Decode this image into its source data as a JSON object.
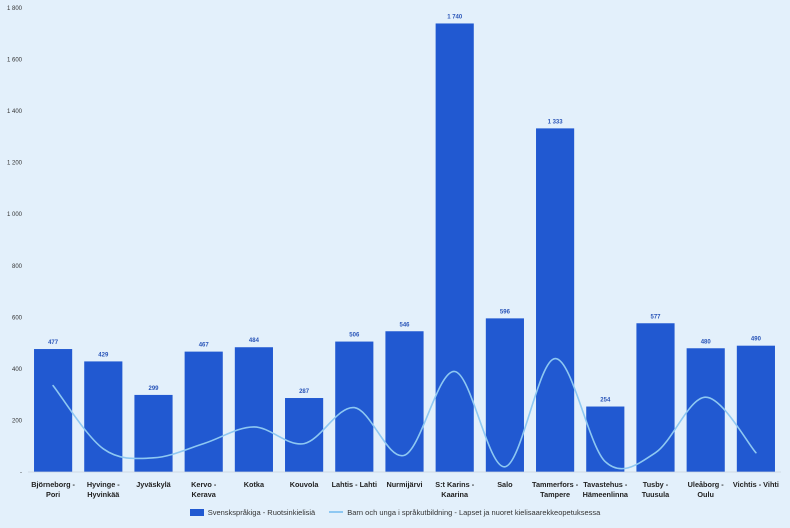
{
  "chart_data": {
    "type": "bar",
    "categories": [
      [
        "Björneborg -",
        "Pori"
      ],
      [
        "Hyvinge -",
        "Hyvinkää"
      ],
      [
        "Jyväskylä"
      ],
      [
        "Kervo -",
        "Kerava"
      ],
      [
        "Kotka"
      ],
      [
        "Kouvola"
      ],
      [
        "Lahtis - Lahti"
      ],
      [
        "Nurmijärvi"
      ],
      [
        "S:t Karins -",
        "Kaarina"
      ],
      [
        "Salo"
      ],
      [
        "Tammerfors -",
        "Tampere"
      ],
      [
        "Tavastehus -",
        "Hämeenlinna"
      ],
      [
        "Tusby -",
        "Tuusula"
      ],
      [
        "Uleåborg -",
        "Oulu"
      ],
      [
        "Vichtis - Vihti"
      ]
    ],
    "series": [
      {
        "name": "Svenskspråkiga - Ruotsinkielisiä",
        "type": "bar",
        "color": "#2159d1",
        "values": [
          477,
          429,
          299,
          467,
          484,
          287,
          506,
          546,
          1740,
          596,
          1333,
          254,
          577,
          480,
          490
        ],
        "labels": [
          "477",
          "429",
          "299",
          "467",
          "484",
          "287",
          "506",
          "546",
          "1 740",
          "596",
          "1 333",
          "254",
          "577",
          "480",
          "490"
        ]
      },
      {
        "name": "Barn och unga i språkutbildning - Lapset ja nuoret kielisaarekkeopetuksessa",
        "type": "line",
        "color": "#8ec8f2",
        "smooth": true,
        "values": [
          335,
          90,
          55,
          110,
          175,
          110,
          250,
          65,
          390,
          20,
          440,
          40,
          75,
          290,
          75
        ]
      }
    ],
    "ylim": [
      0,
      1800
    ],
    "yticks": [
      0,
      200,
      400,
      600,
      800,
      1000,
      1200,
      1400,
      1600,
      1800
    ],
    "ytick_labels": [
      "-",
      "200",
      "400",
      "600",
      "800",
      "1 000",
      "1 200",
      "1 400",
      "1 600",
      "1 800"
    ],
    "grid": false,
    "legend_position": "bottom"
  }
}
